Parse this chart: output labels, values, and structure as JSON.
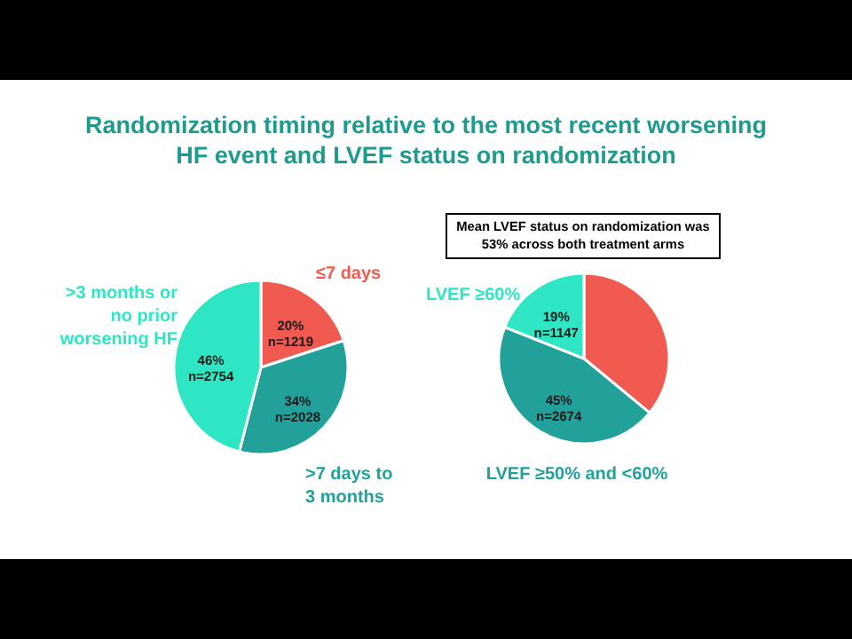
{
  "chart_data": [
    {
      "type": "pie",
      "title": "Randomization timing relative to the most recent worsening HF event and LVEF status on randomization",
      "categories": [
        "≤7 days",
        ">7 days to 3 months",
        ">3 months or no prior worsening HF"
      ],
      "values": [
        20,
        34,
        46
      ],
      "colors": [
        "#f15a50",
        "#21a199",
        "#2ee6c3"
      ],
      "value_labels": [
        "20% n=1219",
        "34% n=2028",
        "46% n=2754"
      ]
    },
    {
      "type": "pie",
      "categories": [
        null,
        "LVEF ≥50% and <60%",
        "LVEF ≥60%"
      ],
      "values": [
        36,
        45,
        19
      ],
      "colors": [
        "#f15a50",
        "#21a199",
        "#2ee6c3"
      ],
      "value_labels": [
        null,
        "45% n=2674",
        "19% n=1147"
      ],
      "annotations": [
        "Mean LVEF status on randomization was 53% across both treatment arms"
      ]
    }
  ]
}
